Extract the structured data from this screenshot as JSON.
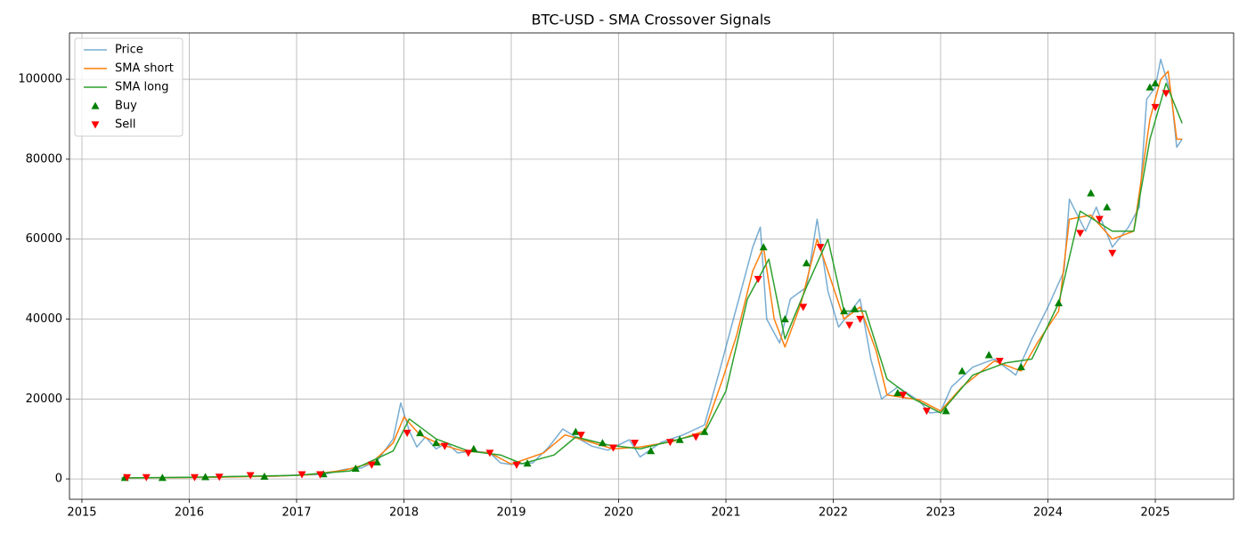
{
  "chart_data": {
    "type": "line",
    "title": "BTC-USD - SMA Crossover Signals",
    "xlim": [
      2014.884,
      2025.73
    ],
    "xticks": [
      2015,
      2016,
      2017,
      2018,
      2019,
      2020,
      2021,
      2022,
      2023,
      2024,
      2025
    ],
    "ylim": [
      -5100,
      111600
    ],
    "yticks": [
      0,
      20000,
      40000,
      60000,
      80000,
      100000
    ],
    "grid": true,
    "legend": "upper left",
    "series": [
      {
        "name": "Price",
        "type": "line",
        "color": "#1f77b4",
        "x": [
          2015.37,
          2015.6,
          2015.9,
          2016.2,
          2016.5,
          2016.8,
          2017.0,
          2017.25,
          2017.45,
          2017.6,
          2017.75,
          2017.9,
          2017.97,
          2018.05,
          2018.12,
          2018.2,
          2018.3,
          2018.4,
          2018.5,
          2018.65,
          2018.8,
          2018.9,
          2019.0,
          2019.2,
          2019.35,
          2019.48,
          2019.6,
          2019.75,
          2019.9,
          2020.1,
          2020.2,
          2020.4,
          2020.6,
          2020.8,
          2020.95,
          2021.05,
          2021.15,
          2021.25,
          2021.32,
          2021.38,
          2021.5,
          2021.6,
          2021.75,
          2021.85,
          2021.95,
          2022.05,
          2022.25,
          2022.35,
          2022.45,
          2022.6,
          2022.8,
          2022.9,
          2023.0,
          2023.1,
          2023.3,
          2023.5,
          2023.7,
          2023.85,
          2024.0,
          2024.15,
          2024.2,
          2024.35,
          2024.45,
          2024.6,
          2024.75,
          2024.85,
          2024.92,
          2025.0,
          2025.05,
          2025.15,
          2025.2,
          2025.25
        ],
        "values": [
          240,
          270,
          360,
          420,
          650,
          700,
          1000,
          1100,
          2400,
          2700,
          4500,
          10000,
          19000,
          12000,
          8000,
          10500,
          7500,
          9000,
          6500,
          7000,
          6500,
          4000,
          3600,
          4000,
          8000,
          12500,
          10500,
          8200,
          7200,
          9800,
          5500,
          9200,
          11000,
          13500,
          28000,
          38000,
          48000,
          58000,
          63000,
          40000,
          34000,
          45000,
          48000,
          65000,
          47000,
          38000,
          45000,
          30000,
          20000,
          23000,
          19500,
          16500,
          16800,
          23000,
          28000,
          30000,
          26000,
          35000,
          43000,
          52000,
          70000,
          62000,
          68000,
          58000,
          63000,
          68000,
          95000,
          98000,
          105000,
          96000,
          83000,
          85000
        ]
      },
      {
        "name": "SMA short",
        "type": "line",
        "color": "#ff7f0e",
        "x": [
          2015.4,
          2015.9,
          2016.3,
          2016.8,
          2017.1,
          2017.45,
          2017.7,
          2017.9,
          2018.0,
          2018.15,
          2018.35,
          2018.55,
          2018.8,
          2019.0,
          2019.3,
          2019.5,
          2019.7,
          2019.95,
          2020.2,
          2020.5,
          2020.8,
          2020.97,
          2021.1,
          2021.25,
          2021.35,
          2021.45,
          2021.55,
          2021.7,
          2021.85,
          2021.95,
          2022.1,
          2022.25,
          2022.4,
          2022.5,
          2022.8,
          2023.0,
          2023.2,
          2023.5,
          2023.75,
          2023.9,
          2024.1,
          2024.2,
          2024.4,
          2024.6,
          2024.8,
          2024.95,
          2025.05,
          2025.12,
          2025.2,
          2025.25
        ],
        "values": [
          240,
          340,
          450,
          680,
          1000,
          2200,
          4000,
          9000,
          15500,
          11000,
          8500,
          7000,
          6500,
          3700,
          6500,
          11000,
          9500,
          7500,
          8000,
          9300,
          12000,
          25000,
          36000,
          52000,
          58000,
          40000,
          33000,
          44000,
          60000,
          52000,
          40000,
          43000,
          32000,
          21000,
          19800,
          17000,
          23000,
          29500,
          27000,
          34000,
          42000,
          65000,
          66000,
          60000,
          62000,
          90000,
          100000,
          102000,
          85000,
          85000
        ]
      },
      {
        "name": "SMA long",
        "type": "line",
        "color": "#2ca02c",
        "x": [
          2015.37,
          2016.0,
          2017.0,
          2017.5,
          2017.9,
          2018.05,
          2018.3,
          2018.6,
          2018.9,
          2019.1,
          2019.4,
          2019.6,
          2019.9,
          2020.2,
          2020.5,
          2020.8,
          2021.0,
          2021.2,
          2021.4,
          2021.55,
          2021.75,
          2021.95,
          2022.1,
          2022.3,
          2022.5,
          2022.75,
          2023.0,
          2023.3,
          2023.6,
          2023.85,
          2024.1,
          2024.3,
          2024.6,
          2024.8,
          2024.95,
          2025.1,
          2025.25
        ],
        "values": [
          240,
          400,
          900,
          2000,
          7000,
          15000,
          10000,
          7000,
          6000,
          3800,
          6000,
          10500,
          8500,
          7500,
          9500,
          11500,
          22000,
          45000,
          55000,
          35000,
          48000,
          60000,
          42000,
          42000,
          25000,
          20000,
          16500,
          26000,
          29000,
          30000,
          44000,
          67000,
          62000,
          62000,
          85000,
          99000,
          89000
        ]
      },
      {
        "name": "Buy",
        "type": "scatter",
        "marker": "up",
        "color": "#008000",
        "x": [
          2015.4,
          2015.75,
          2016.15,
          2016.7,
          2017.25,
          2017.55,
          2017.75,
          2018.15,
          2018.3,
          2018.65,
          2019.15,
          2019.6,
          2019.85,
          2020.3,
          2020.57,
          2020.8,
          2021.35,
          2021.55,
          2021.75,
          2022.1,
          2022.2,
          2022.6,
          2023.05,
          2023.2,
          2023.45,
          2023.75,
          2024.1,
          2024.4,
          2024.55,
          2024.95,
          2025.0
        ],
        "values": [
          300,
          300,
          500,
          600,
          1200,
          2600,
          4200,
          11500,
          9000,
          7500,
          3900,
          11800,
          9000,
          7000,
          9800,
          11800,
          58000,
          40000,
          54000,
          42000,
          42500,
          21500,
          17000,
          27000,
          31000,
          28000,
          44000,
          71500,
          68000,
          98000,
          99000
        ]
      },
      {
        "name": "Sell",
        "type": "scatter",
        "marker": "down",
        "color": "#ff0000",
        "x": [
          2015.42,
          2015.6,
          2016.05,
          2016.28,
          2016.57,
          2017.05,
          2017.22,
          2017.7,
          2018.03,
          2018.38,
          2018.6,
          2018.8,
          2019.05,
          2019.65,
          2019.95,
          2020.15,
          2020.48,
          2020.72,
          2021.3,
          2021.72,
          2021.88,
          2022.15,
          2022.25,
          2022.65,
          2022.87,
          2023.55,
          2024.3,
          2024.48,
          2024.6,
          2025.0,
          2025.1
        ],
        "values": [
          400,
          400,
          400,
          500,
          900,
          1100,
          1100,
          3500,
          11500,
          8200,
          6500,
          6500,
          3500,
          11000,
          7800,
          9000,
          9200,
          10500,
          50000,
          43000,
          58000,
          38500,
          40000,
          21000,
          17000,
          29500,
          61500,
          65000,
          56500,
          93000,
          96500
        ]
      }
    ]
  }
}
